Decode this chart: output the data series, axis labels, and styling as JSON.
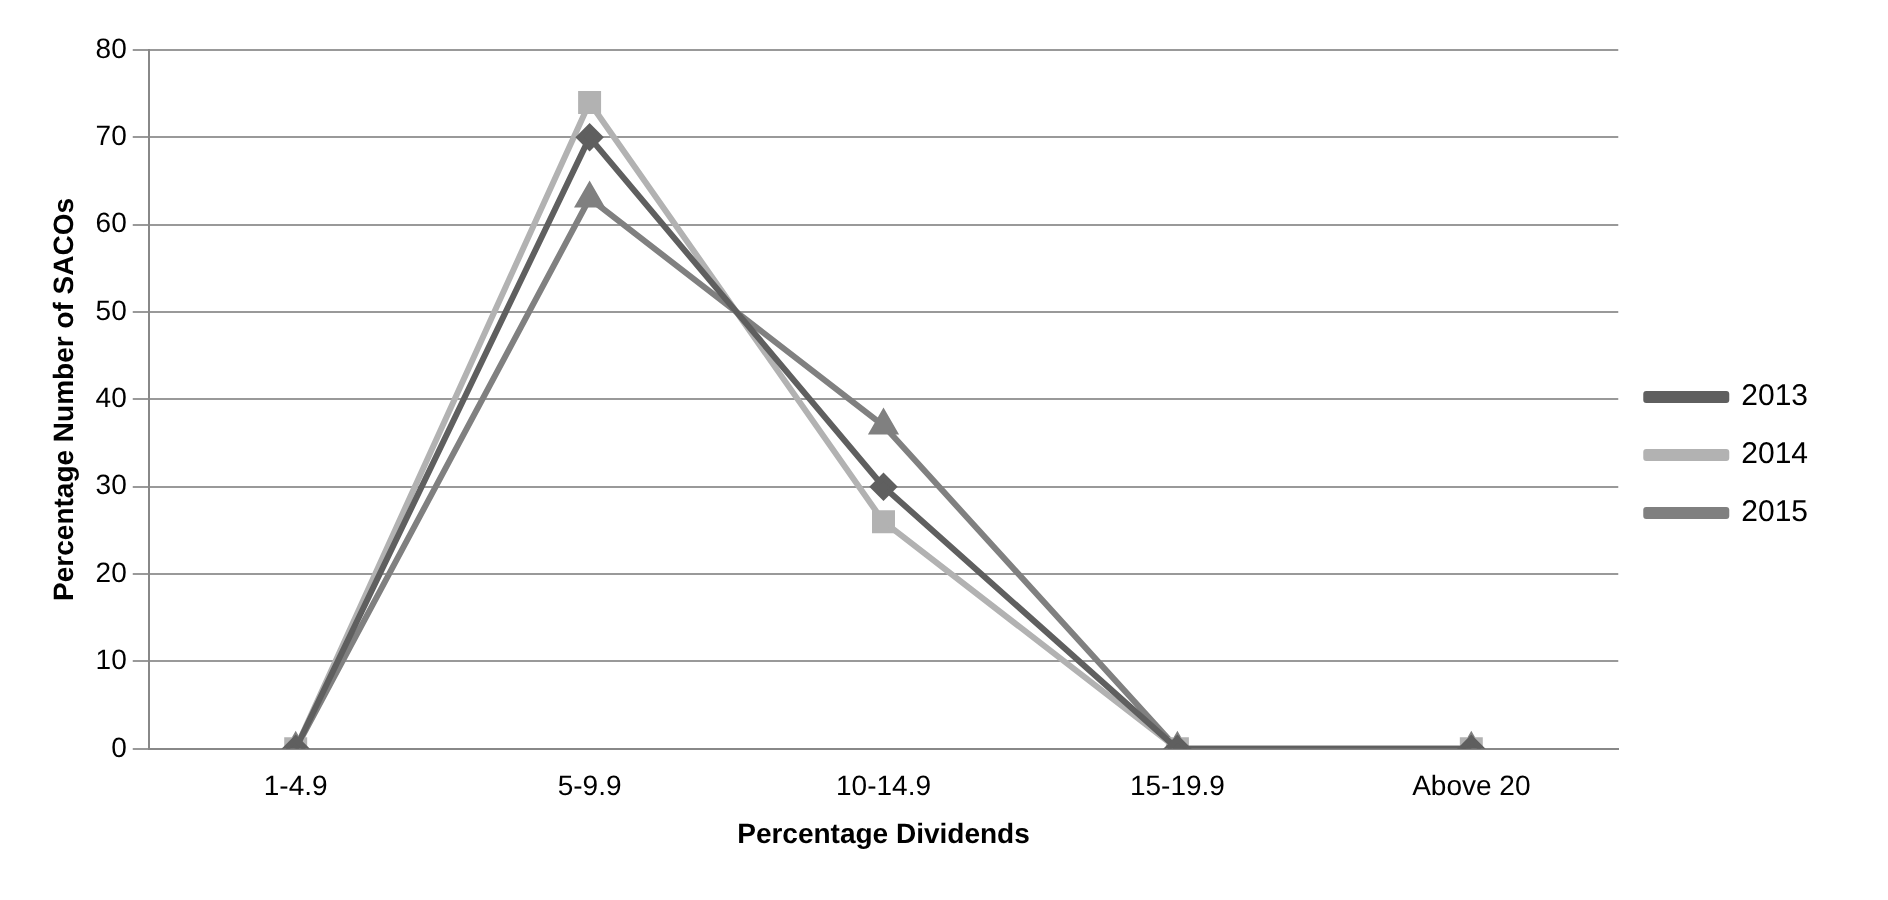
{
  "chart_data": {
    "type": "line",
    "xlabel": "Percentage Dividends",
    "ylabel": "Percentage Number of SACOs",
    "categories": [
      "1-4.9",
      "5-9.9",
      "10-14.9",
      "15-19.9",
      "Above 20"
    ],
    "series": [
      {
        "name": "2013",
        "color": "#5f5f5f",
        "marker": "diamond",
        "values": [
          0,
          70,
          30,
          0,
          0
        ]
      },
      {
        "name": "2014",
        "color": "#b2b2b2",
        "marker": "square",
        "values": [
          0,
          74,
          26,
          0,
          0
        ]
      },
      {
        "name": "2015",
        "color": "#808080",
        "marker": "triangle",
        "values": [
          0,
          63,
          37,
          0,
          0
        ]
      }
    ],
    "ylim": [
      0,
      80
    ],
    "yticks": [
      0,
      10,
      20,
      30,
      40,
      50,
      60,
      70,
      80
    ],
    "grid": "y",
    "legend": "right"
  }
}
